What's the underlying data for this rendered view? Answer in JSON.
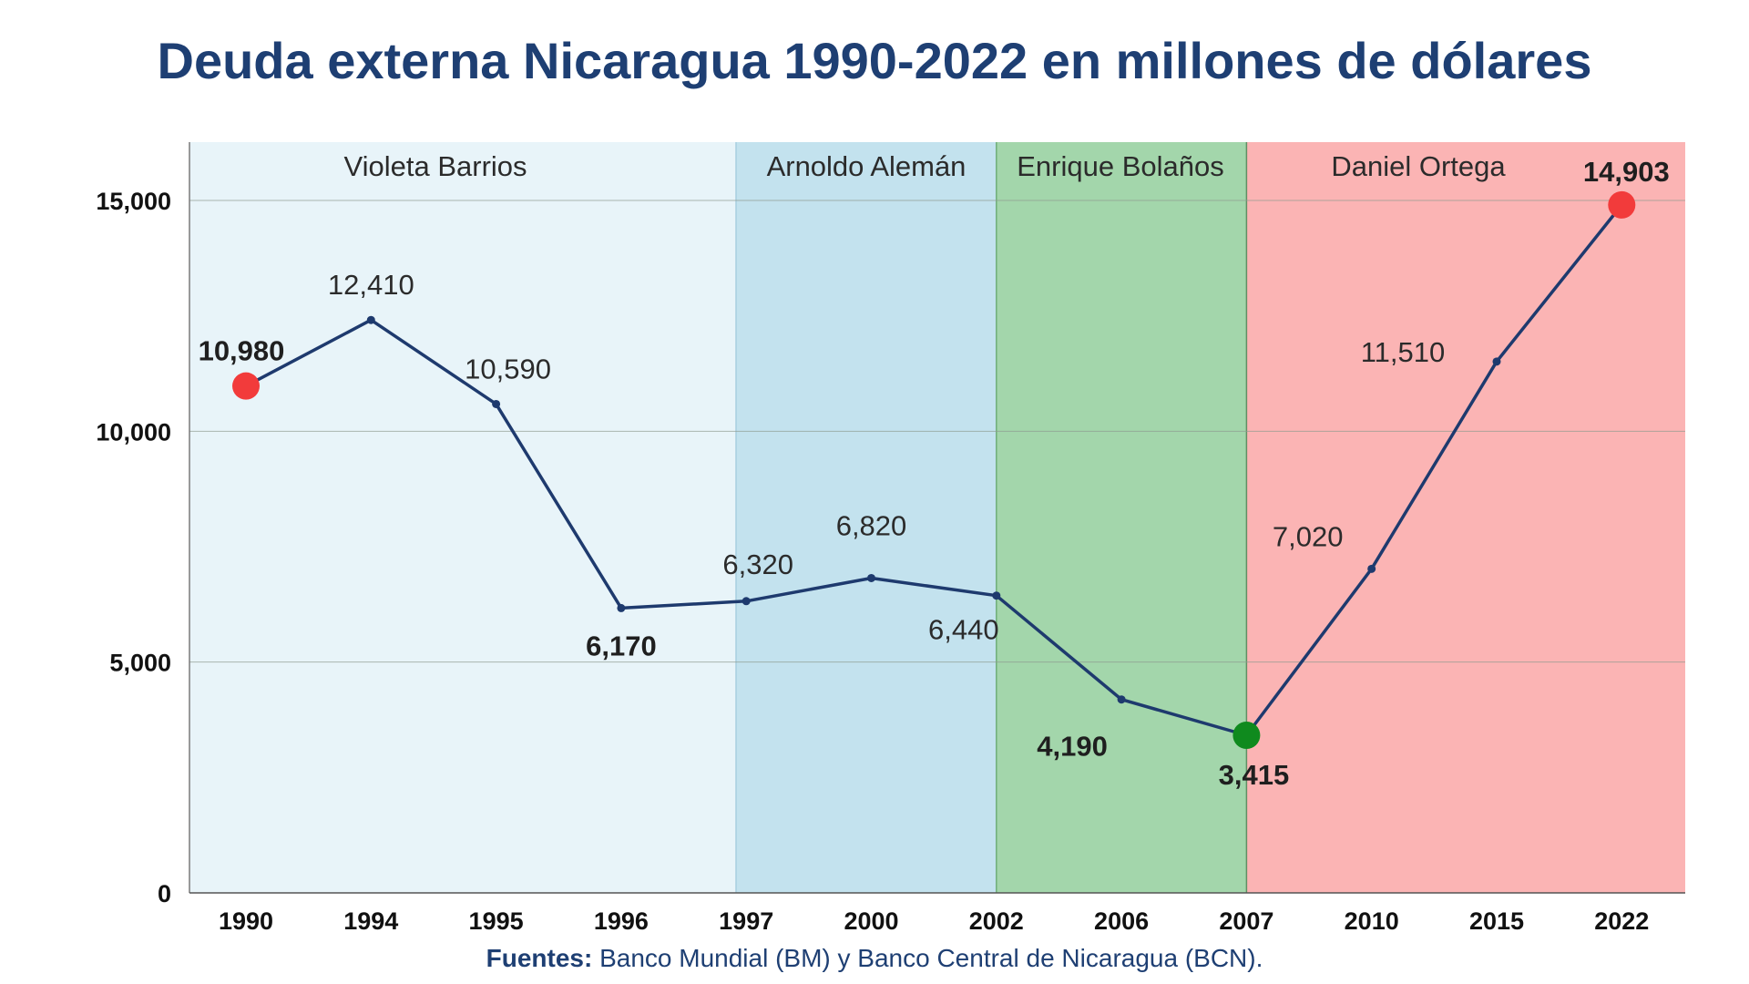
{
  "chart_data": {
    "type": "line",
    "title": "Deuda externa Nicaragua 1990-2022 en millones de dólares",
    "xlabel": "",
    "ylabel": "",
    "categories": [
      "1990",
      "1994",
      "1995",
      "1996",
      "1997",
      "2000",
      "2002",
      "2006",
      "2007",
      "2010",
      "2015",
      "2022"
    ],
    "series": [
      {
        "values": [
          10980,
          12410,
          10590,
          6170,
          6320,
          6820,
          6440,
          4190,
          3415,
          7020,
          11510,
          14903
        ]
      }
    ],
    "data_labels": [
      "10,980",
      "12,410",
      "10,590",
      "6,170",
      "6,320",
      "6,820",
      "6,440",
      "4,190",
      "3,415",
      "7,020",
      "11,510",
      "14,903"
    ],
    "ylim": [
      0,
      15000
    ],
    "yticks": [
      0,
      5000,
      10000,
      15000
    ],
    "ytick_labels": [
      "0",
      "5,000",
      "10,000",
      "15,000"
    ],
    "grid": true,
    "periods": [
      {
        "label": "Violeta Barrios",
        "color": "#e8f4f9"
      },
      {
        "label": "Arnoldo Alemán",
        "color": "#c3e2ee"
      },
      {
        "label": "Enrique Bolaños",
        "color": "#a3d6ab"
      },
      {
        "label": "Daniel Ortega",
        "color": "#fbb4b4"
      }
    ],
    "highlights": [
      {
        "category": "1990",
        "color": "#f23b3b"
      },
      {
        "category": "2007",
        "color": "#0f8a1e"
      },
      {
        "category": "2022",
        "color": "#f23b3b"
      }
    ],
    "line_color": "#1e3a6e"
  },
  "source": {
    "label": "Fuentes:",
    "text": " Banco Mundial (BM) y Banco Central de Nicaragua (BCN)."
  }
}
